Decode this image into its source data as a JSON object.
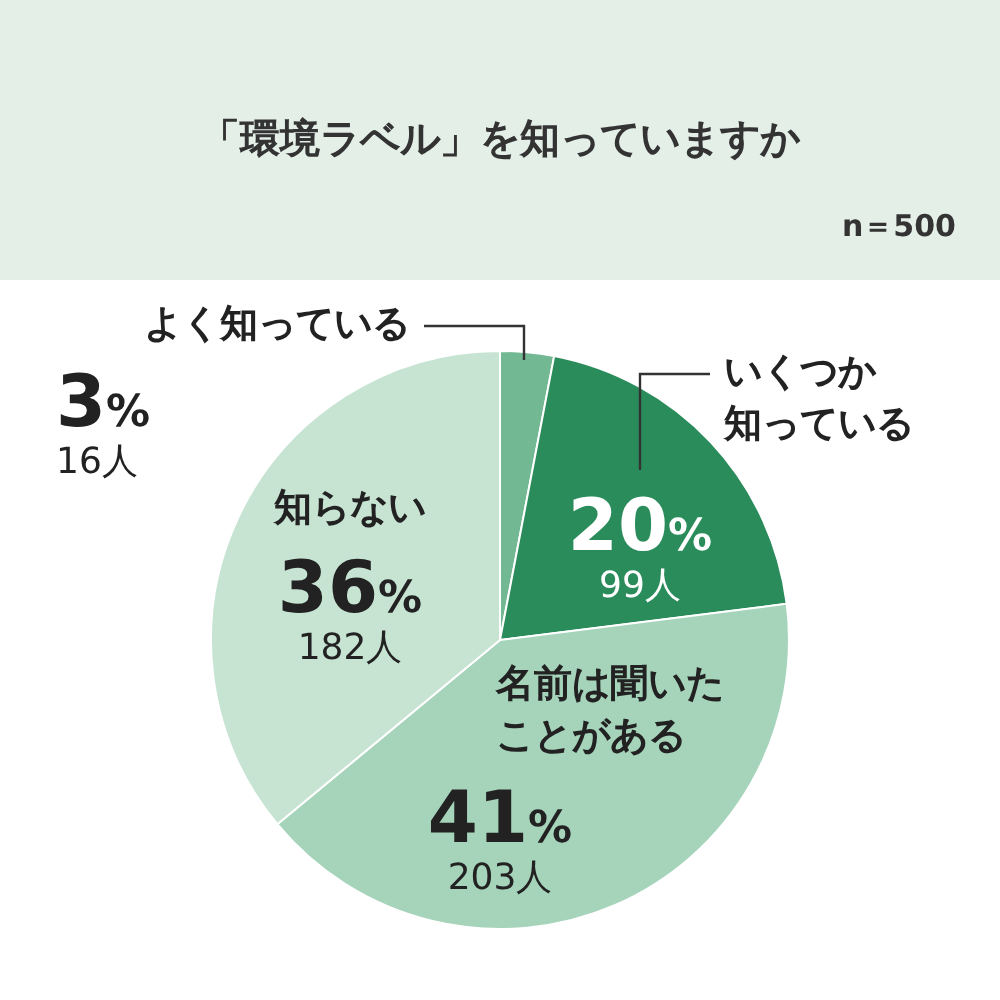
{
  "chart_data": {
    "type": "pie",
    "title": "「環境ラベル」を知っていますか",
    "subtitle": "n＝500",
    "categories": [
      "よく知っている",
      "いくつか知っている",
      "名前は聞いたことがある",
      "知らない"
    ],
    "values": [
      3,
      20,
      41,
      36
    ],
    "colors": [
      "#72b892",
      "#2b8c5b",
      "#a6d4bb",
      "#c7e4d3"
    ],
    "value_labels": [
      "3%\n16人",
      "20%\n99人",
      "41%\n203人",
      "36%\n182人"
    ],
    "legend": false
  }
}
